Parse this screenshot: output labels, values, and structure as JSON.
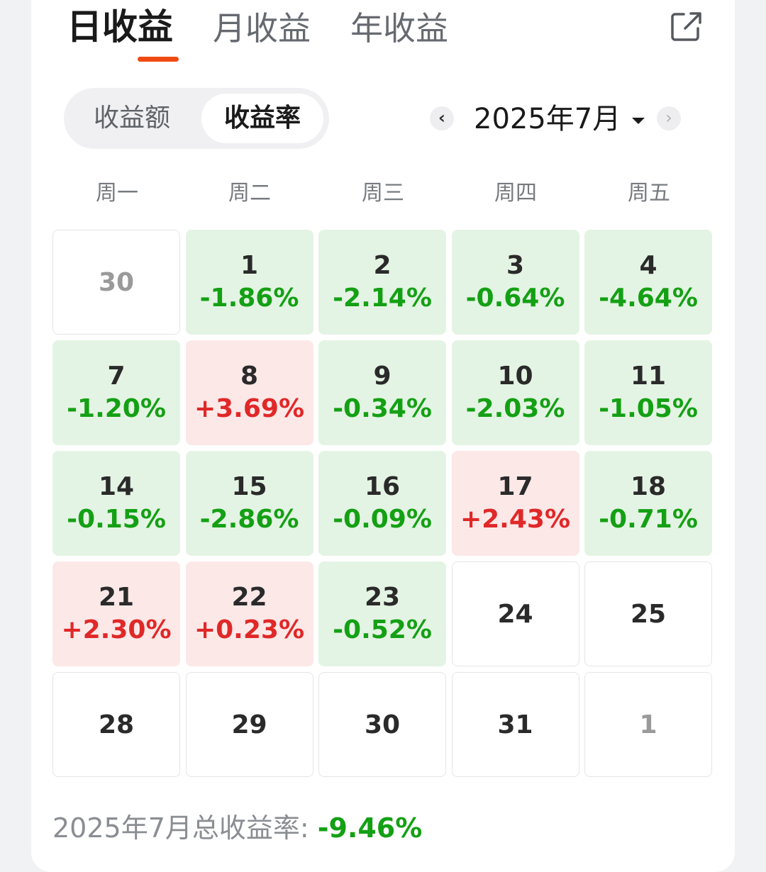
{
  "tabs": [
    {
      "label": "日收益",
      "active": true
    },
    {
      "label": "月收益",
      "active": false
    },
    {
      "label": "年收益",
      "active": false
    }
  ],
  "toggle": {
    "amount_label": "收益额",
    "rate_label": "收益率",
    "selected": "rate"
  },
  "month_nav": {
    "label": "2025年7月",
    "prev_icon": "‹",
    "next_icon": "›"
  },
  "weekdays": [
    "周一",
    "周二",
    "周三",
    "周四",
    "周五"
  ],
  "calendar": [
    {
      "day": "30",
      "rate": "",
      "trend": "none",
      "muted": true
    },
    {
      "day": "1",
      "rate": "-1.86%",
      "trend": "down",
      "muted": false
    },
    {
      "day": "2",
      "rate": "-2.14%",
      "trend": "down",
      "muted": false
    },
    {
      "day": "3",
      "rate": "-0.64%",
      "trend": "down",
      "muted": false
    },
    {
      "day": "4",
      "rate": "-4.64%",
      "trend": "down",
      "muted": false
    },
    {
      "day": "7",
      "rate": "-1.20%",
      "trend": "down",
      "muted": false
    },
    {
      "day": "8",
      "rate": "+3.69%",
      "trend": "up",
      "muted": false
    },
    {
      "day": "9",
      "rate": "-0.34%",
      "trend": "down",
      "muted": false
    },
    {
      "day": "10",
      "rate": "-2.03%",
      "trend": "down",
      "muted": false
    },
    {
      "day": "11",
      "rate": "-1.05%",
      "trend": "down",
      "muted": false
    },
    {
      "day": "14",
      "rate": "-0.15%",
      "trend": "down",
      "muted": false
    },
    {
      "day": "15",
      "rate": "-2.86%",
      "trend": "down",
      "muted": false
    },
    {
      "day": "16",
      "rate": "-0.09%",
      "trend": "down",
      "muted": false
    },
    {
      "day": "17",
      "rate": "+2.43%",
      "trend": "up",
      "muted": false
    },
    {
      "day": "18",
      "rate": "-0.71%",
      "trend": "down",
      "muted": false
    },
    {
      "day": "21",
      "rate": "+2.30%",
      "trend": "up",
      "muted": false
    },
    {
      "day": "22",
      "rate": "+0.23%",
      "trend": "up",
      "muted": false
    },
    {
      "day": "23",
      "rate": "-0.52%",
      "trend": "down",
      "muted": false
    },
    {
      "day": "24",
      "rate": "",
      "trend": "none",
      "muted": false
    },
    {
      "day": "25",
      "rate": "",
      "trend": "none",
      "muted": false
    },
    {
      "day": "28",
      "rate": "",
      "trend": "none",
      "muted": false
    },
    {
      "day": "29",
      "rate": "",
      "trend": "none",
      "muted": false
    },
    {
      "day": "30",
      "rate": "",
      "trend": "none",
      "muted": false
    },
    {
      "day": "31",
      "rate": "",
      "trend": "none",
      "muted": false
    },
    {
      "day": "1",
      "rate": "",
      "trend": "none",
      "muted": true
    }
  ],
  "summary": {
    "label": "2025年7月总收益率:",
    "value": "-9.46%"
  },
  "colors": {
    "accent": "#f04a12",
    "loss": "#14a014",
    "gain": "#e02828",
    "loss_bg": "#e4f4e4",
    "gain_bg": "#fde8e8"
  },
  "icons": {
    "share": "share-icon"
  }
}
